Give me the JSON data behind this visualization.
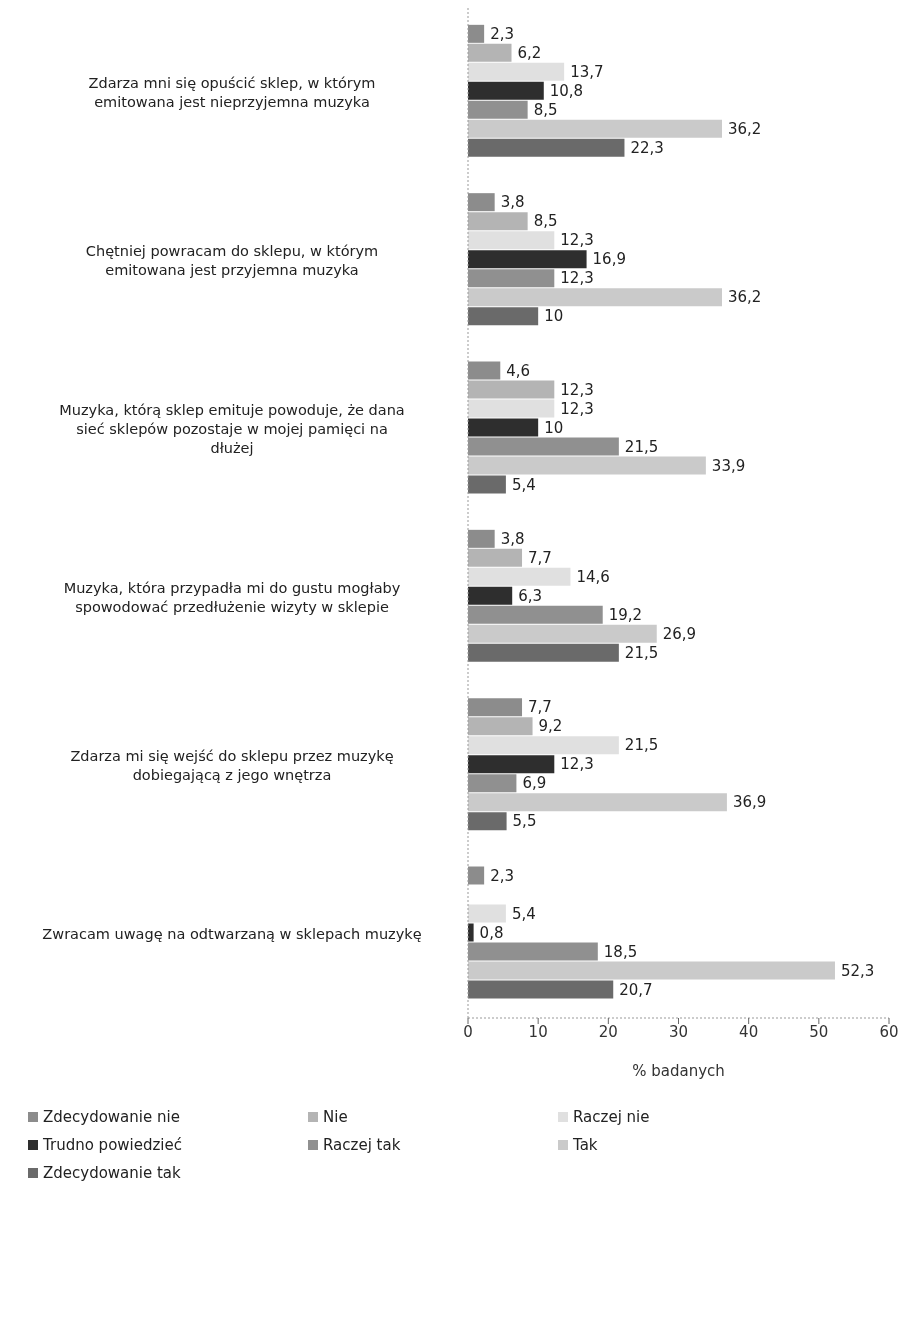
{
  "chart_data": {
    "type": "bar",
    "orientation": "horizontal",
    "categories": [
      "Zdarza mni się opuścić sklep, w którym emitowana jest nieprzyjemna muzyka",
      "Chętniej powracam do sklepu, w którym emitowana jest przyjemna muzyka",
      "Muzyka, którą sklep emituje powoduje, że dana sieć sklepów pozostaje w mojej pamięci na dłużej",
      "Muzyka, która przypadła mi do gustu mogłaby spowodować przedłużenie wizyty w sklepie",
      "Zdarza mi się wejść do sklepu przez muzykę dobiegającą z jego wnętrza",
      "Zwracam uwagę na odtwarzaną w sklepach muzykę"
    ],
    "series": [
      {
        "name": "Zdecydowanie nie",
        "color": "#8c8c8c",
        "values": [
          2.3,
          3.8,
          4.6,
          3.8,
          7.7,
          2.3
        ],
        "value_labels": [
          "2,3",
          "3,8",
          "4,6",
          "3,8",
          "7,7",
          "2,3"
        ]
      },
      {
        "name": "Nie",
        "color": "#b4b4b4",
        "values": [
          6.2,
          8.5,
          12.3,
          7.7,
          9.2,
          null
        ],
        "value_labels": [
          "6,2",
          "8,5",
          "12,3",
          "7,7",
          "9,2",
          null
        ]
      },
      {
        "name": "Raczej nie",
        "color": "#e0e0e0",
        "values": [
          13.7,
          12.3,
          12.3,
          14.6,
          21.5,
          5.4
        ],
        "value_labels": [
          "13,7",
          "12,3",
          "12,3",
          "14,6",
          "21,5",
          "5,4"
        ]
      },
      {
        "name": "Trudno powiedzieć",
        "color": "#2e2e2e",
        "values": [
          10.8,
          16.9,
          10,
          6.3,
          12.3,
          0.8
        ],
        "value_labels": [
          "10,8",
          "16,9",
          "10",
          "6,3",
          "12,3",
          "0,8"
        ]
      },
      {
        "name": "Raczej tak",
        "color": "#909090",
        "values": [
          8.5,
          12.3,
          21.5,
          19.2,
          6.9,
          18.5
        ],
        "value_labels": [
          "8,5",
          "12,3",
          "21,5",
          "19,2",
          "6,9",
          "18,5"
        ]
      },
      {
        "name": "Tak",
        "color": "#cacaca",
        "values": [
          36.2,
          36.2,
          33.9,
          26.9,
          36.9,
          52.3
        ],
        "value_labels": [
          "36,2",
          "36,2",
          "33,9",
          "26,9",
          "36,9",
          "52,3"
        ]
      },
      {
        "name": "Zdecydowanie tak",
        "color": "#6a6a6a",
        "values": [
          22.3,
          10,
          5.4,
          21.5,
          5.5,
          20.7
        ],
        "value_labels": [
          "22,3",
          "10",
          "5,4",
          "21,5",
          "5,5",
          "20,7"
        ]
      }
    ],
    "xlim": [
      0,
      60
    ],
    "xticks": [
      0,
      10,
      20,
      30,
      40,
      50,
      60
    ],
    "xlabel": "% badanych",
    "grid": false,
    "legend": "bottom"
  }
}
